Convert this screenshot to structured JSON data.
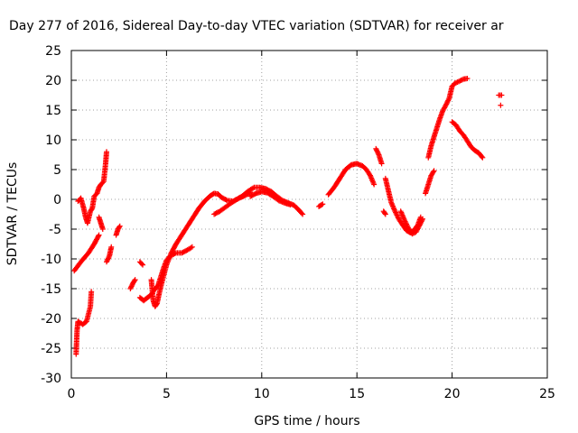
{
  "chart_data": {
    "type": "scatter",
    "title": "Day 277 of 2016, Sidereal Day-to-day VTEC variation (SDTVAR) for receiver ar",
    "xlabel": "GPS time / hours",
    "ylabel": "SDTVAR / TECUs",
    "xlim": [
      0,
      25
    ],
    "ylim": [
      -30,
      25
    ],
    "xticks": [
      0,
      5,
      10,
      15,
      20,
      25
    ],
    "yticks": [
      -30,
      -25,
      -20,
      -15,
      -10,
      -5,
      0,
      5,
      10,
      15,
      20,
      25
    ],
    "grid": true,
    "legend": "none",
    "marker": "plus",
    "series": [
      {
        "color": "#ff0000",
        "segments": [
          [
            [
              0.15,
              -12
            ],
            [
              0.5,
              -10.5
            ],
            [
              0.9,
              -9
            ],
            [
              1.2,
              -7.5
            ],
            [
              1.45,
              -6
            ]
          ],
          [
            [
              0.25,
              -26
            ],
            [
              0.3,
              -22
            ],
            [
              0.35,
              -20.5
            ],
            [
              0.6,
              -21
            ],
            [
              0.8,
              -20.5
            ],
            [
              1.0,
              -18
            ],
            [
              1.05,
              -15.5
            ]
          ],
          [
            [
              0.35,
              -0.3
            ],
            [
              0.5,
              0.2
            ],
            [
              0.65,
              -1.5
            ],
            [
              0.75,
              -3
            ],
            [
              0.85,
              -4
            ],
            [
              1.0,
              -2
            ],
            [
              1.1,
              -1.5
            ],
            [
              1.2,
              0.5
            ],
            [
              1.35,
              1
            ],
            [
              1.45,
              2
            ],
            [
              1.55,
              2.5
            ],
            [
              1.7,
              3
            ],
            [
              1.8,
              6
            ],
            [
              1.85,
              8
            ]
          ],
          [
            [
              1.45,
              -3
            ],
            [
              1.55,
              -4
            ],
            [
              1.65,
              -5
            ]
          ],
          [
            [
              1.85,
              -10.5
            ],
            [
              2.0,
              -9.5
            ],
            [
              2.1,
              -8
            ]
          ],
          [
            [
              2.35,
              -6
            ],
            [
              2.45,
              -5
            ],
            [
              2.55,
              -4.5
            ]
          ],
          [
            [
              3.1,
              -15
            ],
            [
              3.25,
              -14
            ],
            [
              3.35,
              -13.5
            ]
          ],
          [
            [
              3.6,
              -10.5
            ],
            [
              3.75,
              -11
            ]
          ],
          [
            [
              3.6,
              -16.5
            ],
            [
              3.8,
              -17
            ],
            [
              4.0,
              -16.5
            ],
            [
              4.2,
              -16
            ],
            [
              4.4,
              -15
            ],
            [
              4.55,
              -14.5
            ],
            [
              4.7,
              -13
            ],
            [
              4.85,
              -11.5
            ],
            [
              5.0,
              -10.2
            ],
            [
              5.2,
              -9.5
            ],
            [
              5.5,
              -9
            ],
            [
              5.8,
              -9
            ],
            [
              6.1,
              -8.5
            ],
            [
              6.35,
              -8
            ]
          ],
          [
            [
              4.2,
              -13.5
            ],
            [
              4.3,
              -17
            ],
            [
              4.4,
              -18
            ],
            [
              4.5,
              -17.5
            ],
            [
              4.6,
              -16
            ],
            [
              4.75,
              -14
            ],
            [
              5.0,
              -11
            ],
            [
              5.25,
              -9
            ],
            [
              5.5,
              -7.5
            ],
            [
              5.8,
              -6
            ],
            [
              6.1,
              -4.5
            ],
            [
              6.4,
              -3
            ],
            [
              6.7,
              -1.5
            ],
            [
              7.0,
              -0.3
            ],
            [
              7.3,
              0.6
            ],
            [
              7.5,
              1
            ],
            [
              7.7,
              0.9
            ],
            [
              7.9,
              0.3
            ],
            [
              8.2,
              -0.2
            ],
            [
              8.5,
              -0.3
            ],
            [
              8.8,
              0.2
            ],
            [
              9.1,
              0.6
            ],
            [
              9.4,
              1.2
            ]
          ],
          [
            [
              7.5,
              -2.5
            ],
            [
              7.8,
              -2
            ],
            [
              8.1,
              -1.3
            ],
            [
              8.4,
              -0.6
            ],
            [
              8.7,
              0
            ],
            [
              9.0,
              0.6
            ],
            [
              9.3,
              1.4
            ],
            [
              9.6,
              2
            ],
            [
              9.9,
              2
            ],
            [
              10.2,
              1.8
            ],
            [
              10.5,
              1.3
            ],
            [
              10.8,
              0.5
            ],
            [
              11.1,
              -0.2
            ],
            [
              11.4,
              -0.6
            ],
            [
              11.7,
              -1
            ],
            [
              11.95,
              -1.8
            ],
            [
              12.15,
              -2.5
            ]
          ],
          [
            [
              9.4,
              0.5
            ],
            [
              9.7,
              1
            ],
            [
              10.0,
              1.3
            ],
            [
              10.3,
              1.1
            ],
            [
              10.6,
              0.5
            ],
            [
              10.9,
              -0.2
            ],
            [
              11.2,
              -0.6
            ],
            [
              11.5,
              -0.9
            ]
          ],
          [
            [
              13.0,
              -1.2
            ],
            [
              13.2,
              -0.8
            ]
          ],
          [
            [
              13.5,
              0.8
            ],
            [
              13.8,
              2
            ],
            [
              14.1,
              3.5
            ],
            [
              14.4,
              5
            ],
            [
              14.7,
              5.8
            ],
            [
              15.0,
              6
            ],
            [
              15.3,
              5.6
            ],
            [
              15.5,
              5
            ],
            [
              15.7,
              4
            ],
            [
              15.9,
              2.5
            ]
          ],
          [
            [
              16.0,
              8.5
            ],
            [
              16.15,
              7.5
            ],
            [
              16.3,
              6
            ]
          ],
          [
            [
              16.4,
              -2
            ],
            [
              16.5,
              -2.5
            ]
          ],
          [
            [
              16.5,
              3.5
            ],
            [
              16.65,
              1.5
            ],
            [
              16.8,
              -0.5
            ],
            [
              17.0,
              -2
            ],
            [
              17.2,
              -3.3
            ],
            [
              17.4,
              -4.3
            ],
            [
              17.6,
              -5.2
            ],
            [
              17.8,
              -5.6
            ],
            [
              18.0,
              -5.2
            ],
            [
              18.2,
              -4.3
            ],
            [
              18.35,
              -3
            ]
          ],
          [
            [
              17.3,
              -2
            ],
            [
              17.5,
              -3.5
            ],
            [
              17.7,
              -4.8
            ],
            [
              17.9,
              -5.8
            ],
            [
              18.1,
              -5.5
            ],
            [
              18.3,
              -4.3
            ],
            [
              18.45,
              -3.3
            ]
          ],
          [
            [
              18.6,
              1
            ],
            [
              18.75,
              2.5
            ],
            [
              18.9,
              4
            ],
            [
              19.05,
              4.8
            ]
          ],
          [
            [
              18.75,
              7
            ],
            [
              18.9,
              9
            ],
            [
              19.05,
              10.5
            ],
            [
              19.2,
              12
            ],
            [
              19.35,
              13.5
            ],
            [
              19.5,
              14.8
            ],
            [
              19.7,
              16
            ],
            [
              19.85,
              17
            ],
            [
              20.0,
              19
            ],
            [
              20.15,
              19.5
            ],
            [
              20.35,
              19.8
            ],
            [
              20.6,
              20.2
            ],
            [
              20.8,
              20.3
            ]
          ],
          [
            [
              20.0,
              13
            ],
            [
              20.2,
              12.5
            ],
            [
              20.4,
              11.5
            ],
            [
              20.6,
              10.8
            ],
            [
              20.8,
              9.8
            ],
            [
              21.0,
              8.8
            ],
            [
              21.2,
              8.2
            ],
            [
              21.4,
              7.8
            ],
            [
              21.6,
              7
            ]
          ],
          [
            [
              22.45,
              17.5
            ],
            [
              22.6,
              17.5
            ]
          ],
          [
            [
              22.55,
              15.8
            ]
          ]
        ]
      }
    ]
  }
}
